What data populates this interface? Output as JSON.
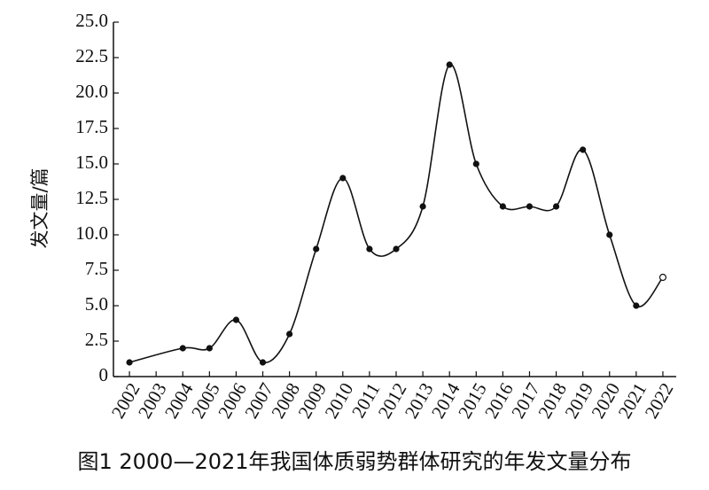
{
  "chart_data": {
    "type": "line",
    "caption": "图1  2000—2021年我国体质弱势群体研究的年发文量分布",
    "y_label": "发文量/篇",
    "x": [
      2002,
      2004,
      2005,
      2006,
      2007,
      2008,
      2009,
      2010,
      2011,
      2012,
      2013,
      2014,
      2015,
      2016,
      2017,
      2018,
      2019,
      2020,
      2021,
      2022
    ],
    "values": [
      1,
      2,
      2,
      4,
      1,
      3,
      9,
      14,
      9,
      9,
      12,
      22,
      15,
      12,
      12,
      12,
      16,
      10,
      5,
      7
    ],
    "color": "#111111",
    "smooth": true,
    "last_point_open": true,
    "xlim": [
      2001.4,
      2022.5
    ],
    "xticks": [
      2002,
      2003,
      2004,
      2005,
      2006,
      2007,
      2008,
      2009,
      2010,
      2011,
      2012,
      2013,
      2014,
      2015,
      2016,
      2017,
      2018,
      2019,
      2020,
      2021,
      2022
    ],
    "ylim": [
      0,
      25
    ],
    "yticks": [
      0,
      2.5,
      {
        "value": 5,
        "label": "5.0"
      },
      7.5,
      {
        "value": 10,
        "label": "10.0"
      },
      12.5,
      {
        "value": 15,
        "label": "15.0"
      },
      17.5,
      {
        "value": 20,
        "label": "20.0"
      },
      22.5,
      {
        "value": 25,
        "label": "25.0"
      }
    ]
  }
}
